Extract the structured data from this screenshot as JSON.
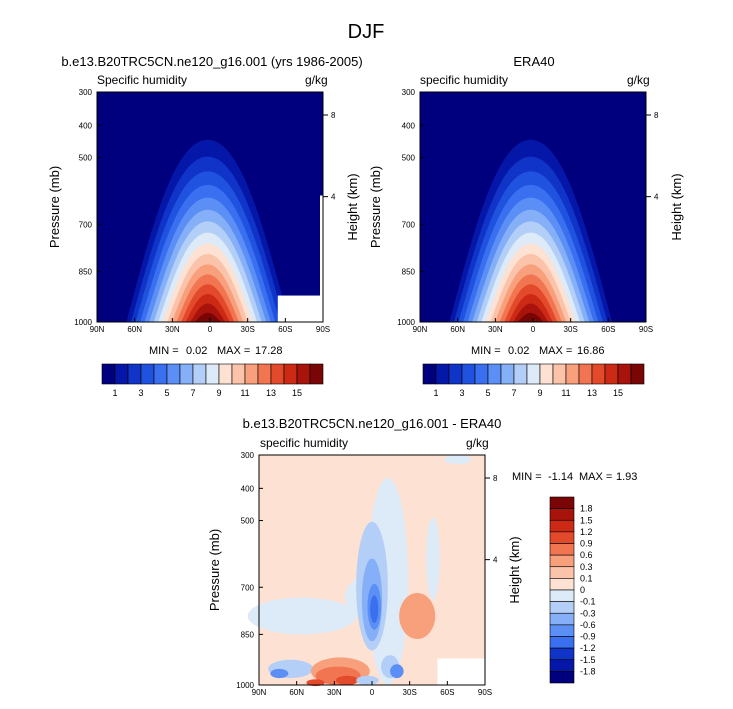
{
  "page": {
    "title": "DJF"
  },
  "chart_data": [
    {
      "type": "heatmap",
      "title": "b.e13.B20TRC5CN.ne120_g16.001 (yrs 1986-2005)",
      "left_label": "Specific humidity",
      "right_label": "g/kg",
      "ylabel": "Pressure (mb)",
      "ylabel_right": "Height (km)",
      "x_ticks": [
        "90N",
        "60N",
        "30N",
        "0",
        "30S",
        "60S",
        "90S"
      ],
      "y_ticks": [
        "300",
        "400",
        "500",
        "700",
        "850",
        "1000"
      ],
      "y_ticks_right": [
        "8",
        "4"
      ],
      "stats": {
        "min_label": "MIN =",
        "min": "0.02",
        "max_label": "MAX =",
        "max": "17.28"
      },
      "colorbar": {
        "labels": [
          "1",
          "3",
          "5",
          "7",
          "9",
          "11",
          "13",
          "15"
        ]
      },
      "surface_peak": 17.28,
      "mask_right": true
    },
    {
      "type": "heatmap",
      "title": "ERA40",
      "left_label": "specific humidity",
      "right_label": "g/kg",
      "ylabel": "Pressure (mb)",
      "ylabel_right": "Height (km)",
      "x_ticks": [
        "90N",
        "60N",
        "30N",
        "0",
        "30S",
        "60S",
        "90S"
      ],
      "y_ticks": [
        "300",
        "400",
        "500",
        "700",
        "850",
        "1000"
      ],
      "y_ticks_right": [
        "8",
        "4"
      ],
      "stats": {
        "min_label": "MIN =",
        "min": "0.02",
        "max_label": "MAX =",
        "max": "16.86"
      },
      "colorbar": {
        "labels": [
          "1",
          "3",
          "5",
          "7",
          "9",
          "11",
          "13",
          "15"
        ]
      },
      "surface_peak": 16.86,
      "mask_right": false
    },
    {
      "type": "heatmap",
      "title": "b.e13.B20TRC5CN.ne120_g16.001 - ERA40",
      "left_label": "specific humidity",
      "right_label": "g/kg",
      "ylabel": "Pressure (mb)",
      "ylabel_right": "Height (km)",
      "x_ticks": [
        "90N",
        "60N",
        "30N",
        "0",
        "30S",
        "60S",
        "90S"
      ],
      "y_ticks": [
        "300",
        "400",
        "500",
        "700",
        "850",
        "1000"
      ],
      "y_ticks_right": [
        "8",
        "4"
      ],
      "stats": {
        "min_label": "MIN =",
        "min": "-1.14",
        "max_label": "MAX =",
        "max": "1.93"
      },
      "colorbar": {
        "labels": [
          "1.8",
          "1.5",
          "1.2",
          "0.9",
          "0.6",
          "0.3",
          "0.1",
          "0",
          "-0.1",
          "-0.3",
          "-0.6",
          "-0.9",
          "-1.2",
          "-1.5",
          "-1.8"
        ]
      }
    }
  ],
  "colors": {
    "humidity": [
      "#00007f",
      "#0517a8",
      "#1034c7",
      "#2052e0",
      "#3a6ff0",
      "#5b8ff5",
      "#85aff7",
      "#b3cff7",
      "#ddeaf8",
      "#fde2d3",
      "#fbc3aa",
      "#f89f7c",
      "#f27551",
      "#e34a2c",
      "#cc2a15",
      "#a8140c",
      "#7a0505"
    ],
    "diff": [
      "#7a0505",
      "#a8140c",
      "#cc2a15",
      "#e34a2c",
      "#f27551",
      "#f89f7c",
      "#fbc3aa",
      "#fde2d3",
      "#ddeaf8",
      "#b3cff7",
      "#85aff7",
      "#5b8ff5",
      "#3a6ff0",
      "#1034c7",
      "#0517a8",
      "#00007f"
    ]
  }
}
